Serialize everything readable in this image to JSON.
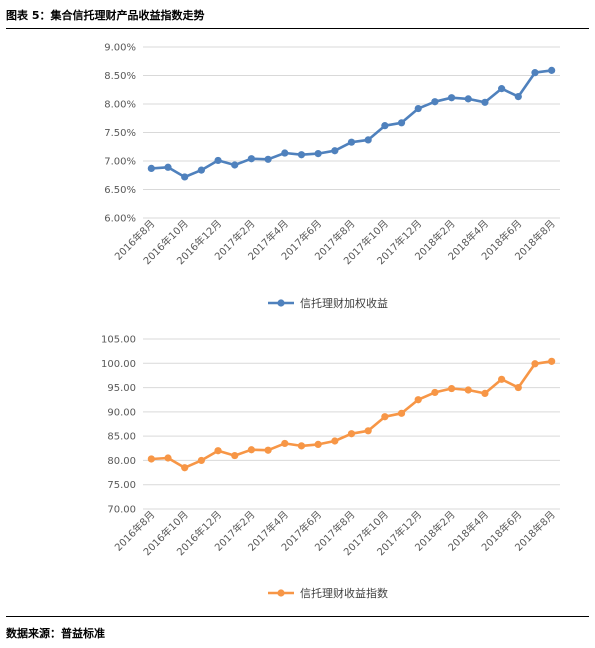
{
  "figure_title": "图表 5：集合信托理财产品收益指数走势",
  "source": "数据来源：普益标准",
  "chart_data": [
    {
      "type": "line",
      "x": [
        "2016年8月",
        "2016年9月",
        "2016年10月",
        "2016年11月",
        "2016年12月",
        "2017年1月",
        "2017年2月",
        "2017年3月",
        "2017年4月",
        "2017年5月",
        "2017年6月",
        "2017年7月",
        "2017年8月",
        "2017年9月",
        "2017年10月",
        "2017年11月",
        "2017年12月",
        "2018年1月",
        "2018年2月",
        "2018年3月",
        "2018年4月",
        "2018年5月",
        "2018年6月",
        "2018年7月",
        "2018年8月"
      ],
      "x_tick_labels": [
        "2016年8月",
        "2016年10月",
        "2016年12月",
        "2017年2月",
        "2017年4月",
        "2017年6月",
        "2017年8月",
        "2017年10月",
        "2017年12月",
        "2018年2月",
        "2018年4月",
        "2018年6月",
        "2018年8月"
      ],
      "series": [
        {
          "name": "信托理财加权收益",
          "color": "#4f81bd",
          "values": [
            6.87,
            6.89,
            6.72,
            6.84,
            7.01,
            6.93,
            7.04,
            7.03,
            7.14,
            7.11,
            7.13,
            7.18,
            7.33,
            7.37,
            7.62,
            7.67,
            7.92,
            8.04,
            8.11,
            8.09,
            8.03,
            8.27,
            8.13,
            8.55,
            8.59
          ]
        }
      ],
      "y_tick_labels": [
        "9.00%",
        "8.50%",
        "8.00%",
        "7.50%",
        "7.00%",
        "6.50%",
        "6.00%"
      ],
      "ylim": [
        6.0,
        9.0
      ],
      "y_step": 0.5,
      "grid": true,
      "legend_position": "bottom"
    },
    {
      "type": "line",
      "x": [
        "2016年8月",
        "2016年9月",
        "2016年10月",
        "2016年11月",
        "2016年12月",
        "2017年1月",
        "2017年2月",
        "2017年3月",
        "2017年4月",
        "2017年5月",
        "2017年6月",
        "2017年7月",
        "2017年8月",
        "2017年9月",
        "2017年10月",
        "2017年11月",
        "2017年12月",
        "2018年1月",
        "2018年2月",
        "2018年3月",
        "2018年4月",
        "2018年5月",
        "2018年6月",
        "2018年7月",
        "2018年8月"
      ],
      "x_tick_labels": [
        "2016年8月",
        "2016年10月",
        "2016年12月",
        "2017年2月",
        "2017年4月",
        "2017年6月",
        "2017年8月",
        "2017年10月",
        "2017年12月",
        "2018年2月",
        "2018年4月",
        "2018年6月",
        "2018年8月"
      ],
      "series": [
        {
          "name": "信托理财收益指数",
          "color": "#f79646",
          "values": [
            80.3,
            80.5,
            78.5,
            80.0,
            82.0,
            81.0,
            82.2,
            82.1,
            83.5,
            83.0,
            83.3,
            84.0,
            85.5,
            86.1,
            89.0,
            89.7,
            92.5,
            94.0,
            94.8,
            94.5,
            93.8,
            96.7,
            95.0,
            99.9,
            100.4
          ]
        }
      ],
      "y_tick_labels": [
        "105.00",
        "100.00",
        "95.00",
        "90.00",
        "85.00",
        "80.00",
        "75.00",
        "70.00"
      ],
      "ylim": [
        70,
        105
      ],
      "y_step": 5,
      "grid": true,
      "legend_position": "bottom"
    }
  ]
}
